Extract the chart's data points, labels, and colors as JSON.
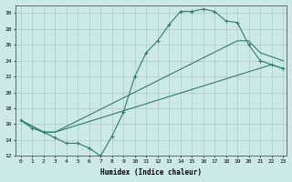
{
  "xlabel": "Humidex (Indice chaleur)",
  "bg_color": "#cce8e8",
  "grid_color": "#b8d8d8",
  "line_color": "#2e7d6e",
  "xlim": [
    -0.5,
    23.3
  ],
  "ylim": [
    12,
    31
  ],
  "xticks": [
    0,
    1,
    2,
    3,
    4,
    5,
    6,
    7,
    8,
    9,
    10,
    11,
    12,
    13,
    14,
    15,
    16,
    17,
    18,
    19,
    20,
    21,
    22,
    23
  ],
  "yticks": [
    12,
    14,
    16,
    18,
    20,
    22,
    24,
    26,
    28,
    30
  ],
  "curve1_x": [
    0,
    1,
    2,
    3,
    4,
    5,
    6,
    7,
    8,
    9,
    10,
    11,
    12,
    13,
    14,
    15,
    16,
    17,
    18,
    19,
    20,
    21,
    22,
    23
  ],
  "curve1_y": [
    16.5,
    15.5,
    15.0,
    14.3,
    13.6,
    13.6,
    13.0,
    12.0,
    14.5,
    17.5,
    22.0,
    25.0,
    26.5,
    28.5,
    30.2,
    30.2,
    30.5,
    30.2,
    29.0,
    28.8,
    26.0,
    24.0,
    23.5,
    23.0
  ],
  "curve2_x": [
    0,
    2,
    3,
    19,
    20,
    21,
    22,
    23
  ],
  "curve2_y": [
    16.5,
    15.0,
    15.0,
    26.5,
    26.5,
    25.0,
    24.5,
    24.0
  ],
  "curve3_x": [
    0,
    2,
    3,
    22,
    23
  ],
  "curve3_y": [
    16.5,
    15.0,
    15.0,
    23.5,
    23.0
  ],
  "marker1_x": [
    0,
    1,
    2,
    3,
    6,
    7,
    9,
    10,
    11,
    12,
    13,
    14,
    15,
    16,
    17,
    18,
    19,
    20,
    21,
    22,
    23
  ],
  "marker1_y": [
    16.5,
    15.5,
    15.0,
    14.3,
    13.0,
    12.0,
    17.5,
    22.0,
    25.0,
    26.5,
    28.5,
    30.2,
    30.2,
    30.5,
    30.2,
    29.0,
    28.8,
    26.0,
    24.0,
    23.5,
    23.0
  ]
}
